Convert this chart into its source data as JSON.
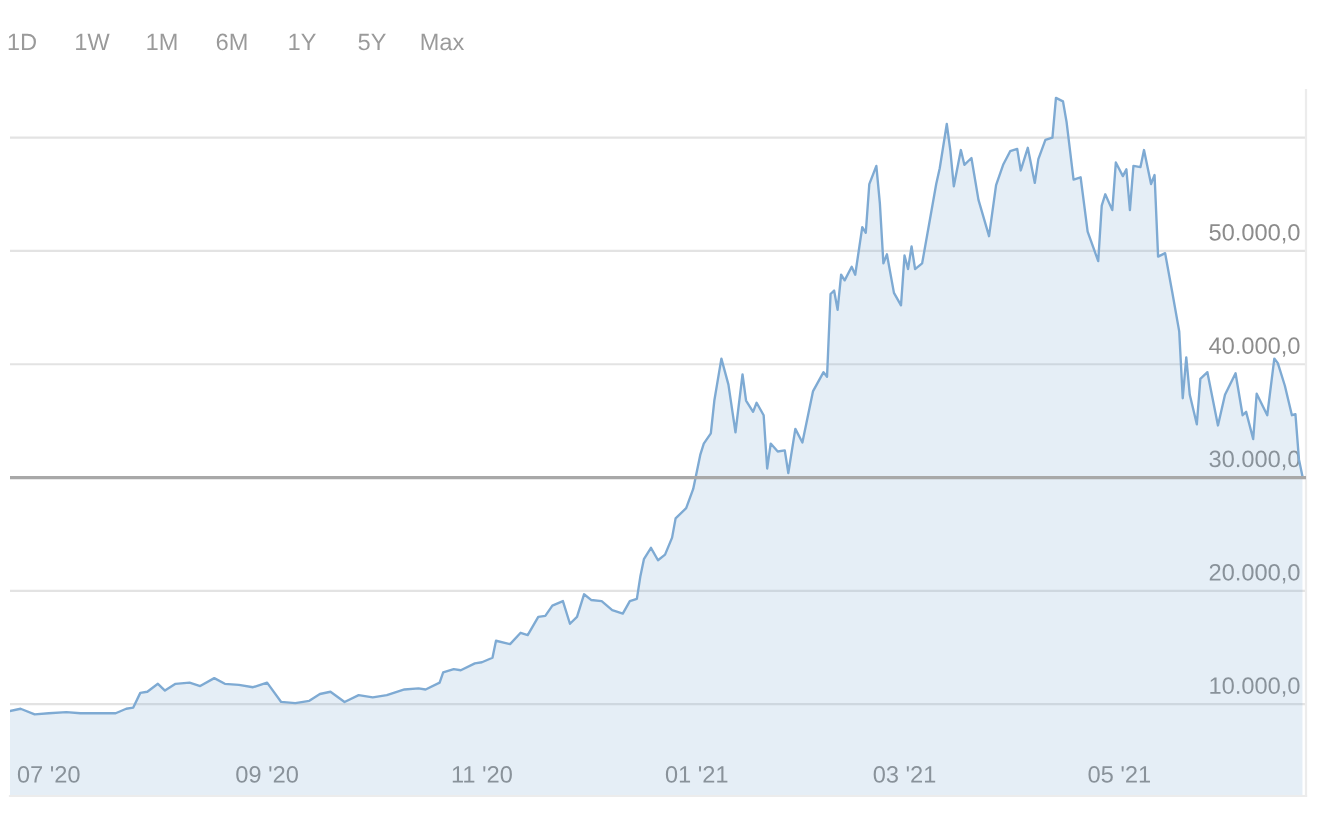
{
  "chart_data": {
    "type": "area",
    "x": [
      "2020-06-20",
      "2020-06-23",
      "2020-06-27",
      "2020-07-01",
      "2020-07-06",
      "2020-07-10",
      "2020-07-15",
      "2020-07-20",
      "2020-07-23",
      "2020-07-25",
      "2020-07-27",
      "2020-07-29",
      "2020-08-01",
      "2020-08-03",
      "2020-08-06",
      "2020-08-10",
      "2020-08-13",
      "2020-08-17",
      "2020-08-20",
      "2020-08-24",
      "2020-08-28",
      "2020-09-01",
      "2020-09-05",
      "2020-09-09",
      "2020-09-13",
      "2020-09-16",
      "2020-09-19",
      "2020-09-23",
      "2020-09-27",
      "2020-10-01",
      "2020-10-05",
      "2020-10-10",
      "2020-10-14",
      "2020-10-16",
      "2020-10-20",
      "2020-10-21",
      "2020-10-24",
      "2020-10-26",
      "2020-10-30",
      "2020-11-01",
      "2020-11-04",
      "2020-11-05",
      "2020-11-09",
      "2020-11-12",
      "2020-11-14",
      "2020-11-17",
      "2020-11-19",
      "2020-11-21",
      "2020-11-24",
      "2020-11-26",
      "2020-11-28",
      "2020-11-30",
      "2020-12-02",
      "2020-12-05",
      "2020-12-08",
      "2020-12-11",
      "2020-12-13",
      "2020-12-15",
      "2020-12-16",
      "2020-12-17",
      "2020-12-19",
      "2020-12-21",
      "2020-12-23",
      "2020-12-25",
      "2020-12-26",
      "2020-12-29",
      "2020-12-31",
      "2021-01-02",
      "2021-01-03",
      "2021-01-05",
      "2021-01-06",
      "2021-01-08",
      "2021-01-10",
      "2021-01-12",
      "2021-01-14",
      "2021-01-15",
      "2021-01-17",
      "2021-01-18",
      "2021-01-20",
      "2021-01-21",
      "2021-01-22",
      "2021-01-24",
      "2021-01-26",
      "2021-01-27",
      "2021-01-29",
      "2021-01-31",
      "2021-02-03",
      "2021-02-06",
      "2021-02-07",
      "2021-02-08",
      "2021-02-09",
      "2021-02-10",
      "2021-02-11",
      "2021-02-12",
      "2021-02-14",
      "2021-02-15",
      "2021-02-17",
      "2021-02-18",
      "2021-02-19",
      "2021-02-21",
      "2021-02-22",
      "2021-02-23",
      "2021-02-24",
      "2021-02-26",
      "2021-02-28",
      "2021-03-01",
      "2021-03-02",
      "2021-03-03",
      "2021-03-04",
      "2021-03-06",
      "2021-03-08",
      "2021-03-10",
      "2021-03-11",
      "2021-03-13",
      "2021-03-14",
      "2021-03-15",
      "2021-03-17",
      "2021-03-18",
      "2021-03-20",
      "2021-03-22",
      "2021-03-25",
      "2021-03-27",
      "2021-03-29",
      "2021-03-31",
      "2021-04-02",
      "2021-04-03",
      "2021-04-05",
      "2021-04-07",
      "2021-04-08",
      "2021-04-10",
      "2021-04-12",
      "2021-04-13",
      "2021-04-15",
      "2021-04-16",
      "2021-04-18",
      "2021-04-20",
      "2021-04-22",
      "2021-04-25",
      "2021-04-26",
      "2021-04-27",
      "2021-04-29",
      "2021-04-30",
      "2021-05-02",
      "2021-05-03",
      "2021-05-04",
      "2021-05-05",
      "2021-05-07",
      "2021-05-08",
      "2021-05-10",
      "2021-05-11",
      "2021-05-12",
      "2021-05-14",
      "2021-05-16",
      "2021-05-18",
      "2021-05-19",
      "2021-05-20",
      "2021-05-21",
      "2021-05-23",
      "2021-05-24",
      "2021-05-26",
      "2021-05-29",
      "2021-05-31",
      "2021-06-03",
      "2021-06-05",
      "2021-06-06",
      "2021-06-08",
      "2021-06-09",
      "2021-06-12",
      "2021-06-14",
      "2021-06-15",
      "2021-06-17",
      "2021-06-19",
      "2021-06-20",
      "2021-06-21",
      "2021-06-22"
    ],
    "series": [
      {
        "color": "#7eaad3",
        "values": [
          9400,
          9600,
          9100,
          9200,
          9300,
          9200,
          9200,
          9200,
          9600,
          9700,
          11000,
          11100,
          11800,
          11200,
          11800,
          11900,
          11600,
          12300,
          11800,
          11700,
          11500,
          11900,
          10200,
          10100,
          10300,
          10900,
          11100,
          10200,
          10800,
          10600,
          10800,
          11300,
          11400,
          11300,
          11900,
          12800,
          13100,
          13000,
          13600,
          13700,
          14100,
          15600,
          15300,
          16300,
          16100,
          17700,
          17800,
          18700,
          19100,
          17100,
          17700,
          19700,
          19200,
          19100,
          18300,
          18000,
          19100,
          19300,
          21300,
          22800,
          23800,
          22700,
          23200,
          24700,
          26400,
          27300,
          29000,
          32000,
          33000,
          33900,
          36800,
          40500,
          38200,
          34000,
          39100,
          36800,
          35800,
          36600,
          35500,
          30800,
          33000,
          32300,
          32400,
          30400,
          34300,
          33100,
          37600,
          39300,
          38900,
          46200,
          46500,
          44800,
          47900,
          47400,
          48600,
          47900,
          52100,
          51600,
          55900,
          57500,
          54200,
          48900,
          49700,
          46300,
          45200,
          49600,
          48400,
          50400,
          48400,
          48900,
          52400,
          55900,
          57300,
          61200,
          58900,
          55700,
          58900,
          57600,
          58200,
          54500,
          51300,
          55800,
          57600,
          58800,
          59000,
          57100,
          59100,
          56000,
          58100,
          59800,
          60000,
          63500,
          63200,
          61400,
          56300,
          56500,
          51700,
          49100,
          54000,
          55000,
          53600,
          57800,
          56600,
          57200,
          53600,
          57500,
          57400,
          58900,
          55900,
          56700,
          49500,
          49800,
          46400,
          42900,
          37000,
          40600,
          37300,
          34700,
          38700,
          39300,
          34600,
          37300,
          39200,
          35500,
          35800,
          33400,
          37400,
          35500,
          40500,
          40100,
          38100,
          35500,
          35600,
          31600,
          30100
        ]
      }
    ],
    "xlim": [
      "2020-06-20",
      "2021-06-23"
    ],
    "xticks": [
      {
        "value": "2020-07-01",
        "label": "07 '20"
      },
      {
        "value": "2020-09-01",
        "label": "09 '20"
      },
      {
        "value": "2020-11-01",
        "label": "11 '20"
      },
      {
        "value": "2021-01-01",
        "label": "01 '21"
      },
      {
        "value": "2021-03-01",
        "label": "03 '21"
      },
      {
        "value": "2021-05-01",
        "label": "05 '21"
      }
    ],
    "ylim": [
      1900,
      64200
    ],
    "yticks": [
      {
        "value": 10000,
        "label": "10.000,0"
      },
      {
        "value": 20000,
        "label": "20.000,0"
      },
      {
        "value": 30000,
        "label": "30.000,0"
      },
      {
        "value": 40000,
        "label": "40.000,0"
      },
      {
        "value": 50000,
        "label": "50.000,0"
      },
      {
        "value": 60000,
        "label": null
      }
    ],
    "ref_lines": [
      {
        "axis": "y",
        "value": 30000,
        "color": "#a8a8a8"
      }
    ],
    "grid": "y",
    "annotations": [
      "1D",
      "1W",
      "1M",
      "6M",
      "1Y",
      "5Y",
      "Max"
    ]
  }
}
